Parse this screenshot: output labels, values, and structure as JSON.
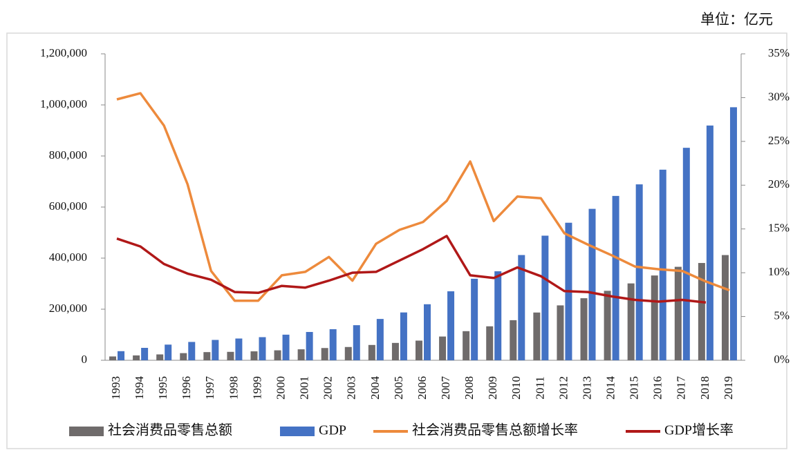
{
  "chart_data": {
    "type": "bar",
    "unit_note": "单位：亿元",
    "categories": [
      "1993",
      "1994",
      "1995",
      "1996",
      "1997",
      "1998",
      "1999",
      "2000",
      "2001",
      "2002",
      "2003",
      "2004",
      "2005",
      "2006",
      "2007",
      "2008",
      "2009",
      "2010",
      "2011",
      "2012",
      "2013",
      "2014",
      "2015",
      "2016",
      "2017",
      "2018",
      "2019"
    ],
    "series": [
      {
        "name": "社会消费品零售总额",
        "type": "bar",
        "color": "#6f6b6b",
        "values": [
          15000,
          19000,
          23000,
          28000,
          32000,
          33000,
          35000,
          39000,
          43000,
          48000,
          52000,
          60000,
          68000,
          77000,
          93000,
          114000,
          133000,
          157000,
          187000,
          215000,
          243000,
          272000,
          301000,
          332000,
          366000,
          381000,
          412000
        ]
      },
      {
        "name": "GDP",
        "type": "bar",
        "color": "#4472c4",
        "values": [
          35673,
          48638,
          61340,
          71814,
          79715,
          85196,
          90564,
          100280,
          110863,
          121717,
          137422,
          161840,
          187319,
          219439,
          270092,
          319245,
          348518,
          412119,
          487940,
          538580,
          592963,
          643563,
          688858,
          746395,
          832036,
          919281,
          990865
        ]
      },
      {
        "name": "社会消费品零售总额增长率",
        "type": "line",
        "axis": "y2",
        "color": "#ed8a3c",
        "values": [
          29.8,
          30.5,
          26.8,
          20.1,
          10.2,
          6.8,
          6.8,
          9.7,
          10.1,
          11.8,
          9.1,
          13.3,
          14.9,
          15.8,
          18.2,
          22.7,
          15.9,
          18.7,
          18.5,
          14.5,
          13.2,
          12.0,
          10.7,
          10.4,
          10.2,
          9.0,
          8.0
        ]
      },
      {
        "name": "GDP增长率",
        "type": "line",
        "axis": "y2",
        "color": "#b01818",
        "values": [
          13.9,
          13.0,
          11.0,
          9.9,
          9.2,
          7.8,
          7.7,
          8.5,
          8.3,
          9.1,
          10.0,
          10.1,
          11.4,
          12.7,
          14.2,
          9.7,
          9.4,
          10.6,
          9.6,
          7.9,
          7.8,
          7.3,
          6.9,
          6.7,
          6.9,
          6.6,
          null
        ]
      }
    ],
    "ylim": [
      0,
      1200000
    ],
    "yticks": [
      0,
      {
        "value": 200000,
        "label": "200,000"
      },
      {
        "value": 400000,
        "label": "400,000"
      },
      {
        "value": 600000,
        "label": "600,000"
      },
      {
        "value": 800000,
        "label": "800,000"
      },
      {
        "value": 1000000,
        "label": "1,000,000"
      },
      {
        "value": 1200000,
        "label": "1,200,000"
      }
    ],
    "y2lim": [
      0,
      35
    ],
    "y2ticks": [
      {
        "value": 0,
        "label": "0%"
      },
      {
        "value": 5,
        "label": "5%"
      },
      {
        "value": 10,
        "label": "10%"
      },
      {
        "value": 15,
        "label": "15%"
      },
      {
        "value": 20,
        "label": "20%"
      },
      {
        "value": 25,
        "label": "25%"
      },
      {
        "value": 30,
        "label": "30%"
      },
      {
        "value": 35,
        "label": "35%"
      }
    ],
    "legend": "bottom"
  }
}
